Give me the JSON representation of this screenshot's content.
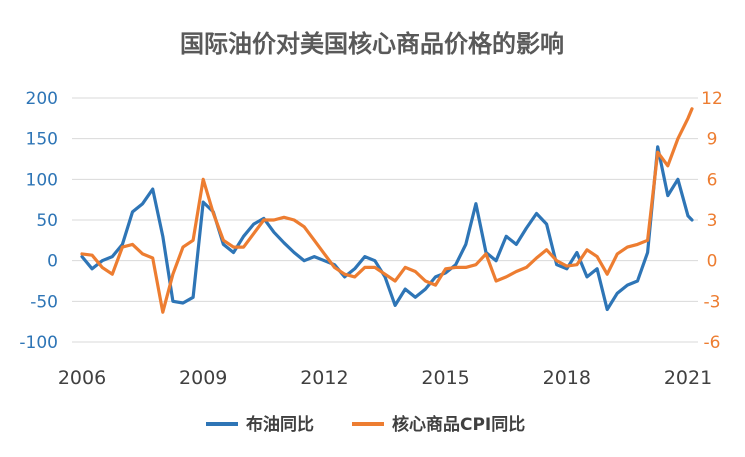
{
  "chart_data": {
    "type": "line",
    "title": "国际油价对美国核心商品价格的影响",
    "x_ticks": [
      "2006",
      "2009",
      "2012",
      "2015",
      "2018",
      "2021"
    ],
    "y_left": {
      "range": [
        -100,
        200
      ],
      "ticks": [
        "200",
        "150",
        "100",
        "50",
        "0",
        "-50",
        "-100"
      ],
      "color": "#2e75b6"
    },
    "y_right": {
      "range": [
        -6,
        12
      ],
      "ticks": [
        "12",
        "9",
        "6",
        "3",
        "0",
        "-3",
        "-6"
      ],
      "color": "#ed7d31"
    },
    "grid": true,
    "legend_position": "bottom",
    "series": [
      {
        "name": "布油同比",
        "axis": "left",
        "color": "#2e75b6",
        "x": [
          2006.0,
          2006.25,
          2006.5,
          2006.75,
          2007.0,
          2007.25,
          2007.5,
          2007.75,
          2008.0,
          2008.25,
          2008.5,
          2008.75,
          2009.0,
          2009.25,
          2009.5,
          2009.75,
          2010.0,
          2010.25,
          2010.5,
          2010.75,
          2011.0,
          2011.25,
          2011.5,
          2011.75,
          2012.0,
          2012.25,
          2012.5,
          2012.75,
          2013.0,
          2013.25,
          2013.5,
          2013.75,
          2014.0,
          2014.25,
          2014.5,
          2014.75,
          2015.0,
          2015.25,
          2015.5,
          2015.75,
          2016.0,
          2016.25,
          2016.5,
          2016.75,
          2017.0,
          2017.25,
          2017.5,
          2017.75,
          2018.0,
          2018.25,
          2018.5,
          2018.75,
          2019.0,
          2019.25,
          2019.5,
          2019.75,
          2020.0,
          2020.25,
          2020.5,
          2020.75,
          2021.0,
          2021.1
        ],
        "values": [
          5,
          -10,
          0,
          5,
          20,
          60,
          70,
          88,
          30,
          -50,
          -52,
          -45,
          72,
          60,
          20,
          10,
          30,
          45,
          52,
          35,
          22,
          10,
          0,
          5,
          0,
          -5,
          -20,
          -10,
          5,
          0,
          -20,
          -55,
          -35,
          -45,
          -35,
          -20,
          -15,
          -5,
          20,
          70,
          10,
          0,
          30,
          20,
          40,
          58,
          45,
          -5,
          -10,
          10,
          -20,
          -10,
          -60,
          -40,
          -30,
          -25,
          10,
          140,
          80,
          100,
          55,
          50
        ]
      },
      {
        "name": "核心商品CPI同比",
        "axis": "right",
        "color": "#ed7d31",
        "x": [
          2006.0,
          2006.25,
          2006.5,
          2006.75,
          2007.0,
          2007.25,
          2007.5,
          2007.75,
          2008.0,
          2008.25,
          2008.5,
          2008.75,
          2009.0,
          2009.25,
          2009.5,
          2009.75,
          2010.0,
          2010.25,
          2010.5,
          2010.75,
          2011.0,
          2011.25,
          2011.5,
          2011.75,
          2012.0,
          2012.25,
          2012.5,
          2012.75,
          2013.0,
          2013.25,
          2013.5,
          2013.75,
          2014.0,
          2014.25,
          2014.5,
          2014.75,
          2015.0,
          2015.25,
          2015.5,
          2015.75,
          2016.0,
          2016.25,
          2016.5,
          2016.75,
          2017.0,
          2017.25,
          2017.5,
          2017.75,
          2018.0,
          2018.25,
          2018.5,
          2018.75,
          2019.0,
          2019.25,
          2019.5,
          2019.75,
          2020.0,
          2020.25,
          2020.5,
          2020.75,
          2021.0,
          2021.1
        ],
        "values": [
          0.5,
          0.4,
          -0.5,
          -1.0,
          1.0,
          1.2,
          0.5,
          0.2,
          -3.8,
          -1.0,
          1.0,
          1.5,
          6.0,
          3.5,
          1.5,
          1.0,
          1.0,
          2.0,
          3.0,
          3.0,
          3.2,
          3.0,
          2.5,
          1.5,
          0.5,
          -0.5,
          -1.0,
          -1.2,
          -0.5,
          -0.5,
          -1.0,
          -1.5,
          -0.5,
          -0.8,
          -1.5,
          -1.8,
          -0.6,
          -0.5,
          -0.5,
          -0.3,
          0.5,
          -1.5,
          -1.2,
          -0.8,
          -0.5,
          0.2,
          0.8,
          0.0,
          -0.4,
          -0.3,
          0.8,
          0.3,
          -1.0,
          0.5,
          1.0,
          1.2,
          1.5,
          8.0,
          7.0,
          9.0,
          10.5,
          11.2
        ]
      }
    ]
  }
}
